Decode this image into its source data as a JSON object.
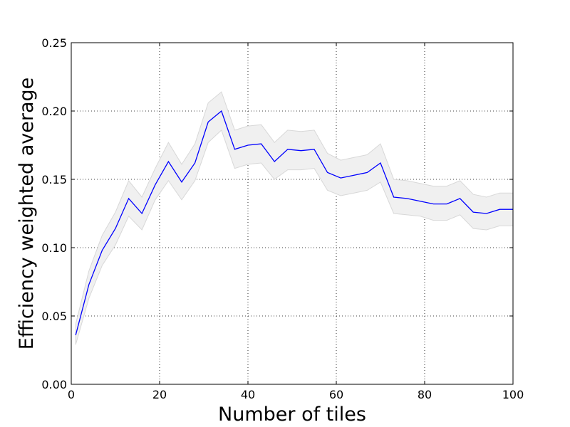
{
  "chart_data": {
    "type": "line",
    "title": "",
    "xlabel": "Number of tiles",
    "ylabel": "Efficiency weighted average",
    "xlim": [
      0,
      100
    ],
    "ylim": [
      0.0,
      0.25
    ],
    "x_ticks": [
      0,
      20,
      40,
      60,
      80,
      100
    ],
    "x_tick_labels": [
      "0",
      "20",
      "40",
      "60",
      "80",
      "100"
    ],
    "y_ticks": [
      0.0,
      0.05,
      0.1,
      0.15,
      0.2,
      0.25
    ],
    "y_tick_labels": [
      "0.00",
      "0.05",
      "0.10",
      "0.15",
      "0.20",
      "0.25"
    ],
    "grid": true,
    "legend": "none",
    "colors": {
      "line": "#0000ff",
      "band_fill": "#f0f0f0",
      "band_edge": "#d8d8d8",
      "grid": "#000000",
      "axes": "#000000"
    },
    "series": [
      {
        "x": [
          1,
          4,
          7,
          10,
          13,
          16,
          19,
          22,
          25,
          28,
          31,
          34,
          37,
          40,
          43,
          46,
          49,
          52,
          55,
          58,
          61,
          64,
          67,
          70,
          73,
          76,
          79,
          82,
          85,
          88,
          91,
          94,
          97,
          100
        ],
        "values": [
          0.036,
          0.073,
          0.098,
          0.114,
          0.136,
          0.125,
          0.146,
          0.163,
          0.148,
          0.162,
          0.192,
          0.2,
          0.172,
          0.175,
          0.176,
          0.163,
          0.172,
          0.171,
          0.172,
          0.155,
          0.151,
          0.153,
          0.155,
          0.162,
          0.137,
          0.136,
          0.134,
          0.132,
          0.132,
          0.136,
          0.126,
          0.125,
          0.128,
          0.128
        ],
        "lower": [
          0.029,
          0.063,
          0.087,
          0.102,
          0.123,
          0.113,
          0.135,
          0.149,
          0.135,
          0.149,
          0.177,
          0.186,
          0.158,
          0.161,
          0.162,
          0.15,
          0.157,
          0.157,
          0.158,
          0.142,
          0.138,
          0.14,
          0.142,
          0.148,
          0.125,
          0.124,
          0.123,
          0.12,
          0.12,
          0.124,
          0.114,
          0.113,
          0.116,
          0.116
        ],
        "upper": [
          0.044,
          0.083,
          0.109,
          0.126,
          0.149,
          0.137,
          0.158,
          0.177,
          0.161,
          0.176,
          0.206,
          0.214,
          0.186,
          0.189,
          0.19,
          0.177,
          0.186,
          0.185,
          0.186,
          0.169,
          0.164,
          0.166,
          0.168,
          0.176,
          0.15,
          0.149,
          0.147,
          0.145,
          0.145,
          0.149,
          0.139,
          0.137,
          0.14,
          0.14
        ]
      }
    ]
  }
}
